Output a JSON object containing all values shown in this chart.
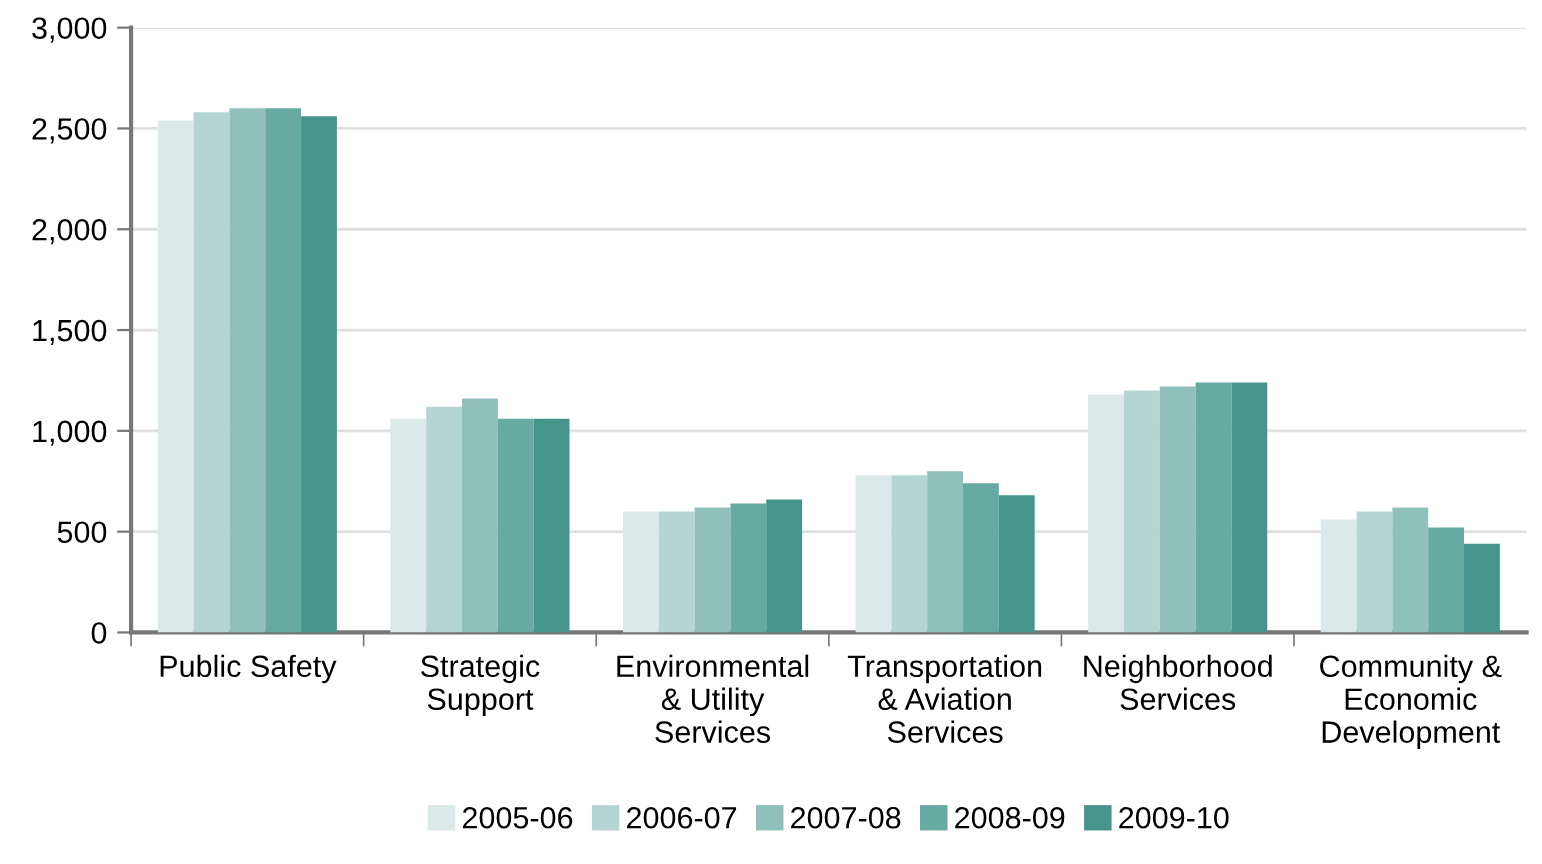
{
  "chart_data": {
    "type": "bar",
    "categories": [
      "Public Safety",
      "Strategic\nSupport",
      "Environmental\n& Utility\nServices",
      "Transportation\n& Aviation\nServices",
      "Neighborhood\nServices",
      "Community &\nEconomic\nDevelopment"
    ],
    "series": [
      {
        "name": "2005-06",
        "color": "#dbe9e8",
        "values": [
          2540,
          1060,
          600,
          780,
          1180,
          560
        ]
      },
      {
        "name": "2006-07",
        "color": "#b5d5d3",
        "values": [
          2580,
          1120,
          600,
          780,
          1200,
          600
        ]
      },
      {
        "name": "2007-08",
        "color": "#90c0bb",
        "values": [
          2600,
          1160,
          620,
          800,
          1220,
          620
        ]
      },
      {
        "name": "2008-09",
        "color": "#66aaa2",
        "values": [
          2600,
          1060,
          640,
          740,
          1240,
          520
        ]
      },
      {
        "name": "2009-10",
        "color": "#45958c",
        "values": [
          2560,
          1060,
          660,
          680,
          1240,
          440
        ]
      }
    ],
    "ylim": [
      0,
      3000
    ],
    "yticks": [
      {
        "value": 0,
        "label": "0"
      },
      {
        "value": 500,
        "label": "500"
      },
      {
        "value": 1000,
        "label": "1,000"
      },
      {
        "value": 1500,
        "label": "1,500"
      },
      {
        "value": 2000,
        "label": "2,000"
      },
      {
        "value": 2500,
        "label": "2,500"
      },
      {
        "value": 3000,
        "label": "3,000"
      }
    ],
    "grid": "y",
    "legend": "bottom"
  }
}
